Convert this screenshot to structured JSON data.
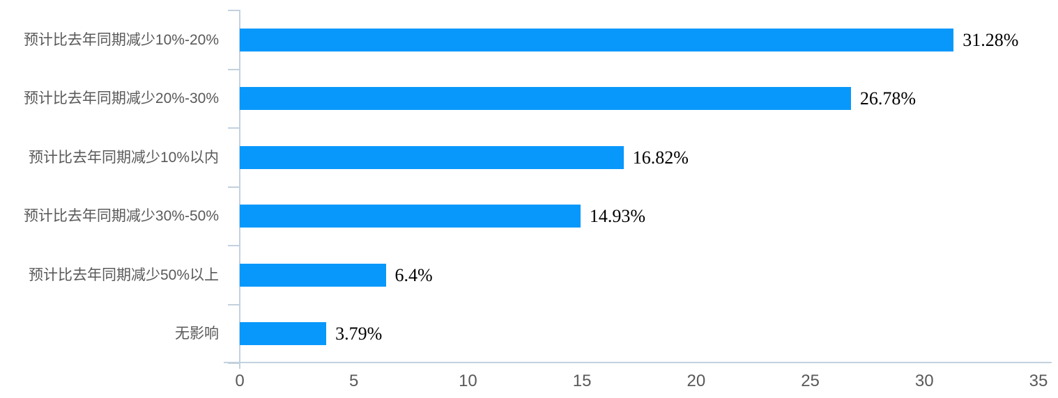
{
  "chart_data": {
    "type": "bar",
    "orientation": "horizontal",
    "title": "",
    "xlabel": "",
    "ylabel": "",
    "categories": [
      "预计比去年同期减少10%-20%",
      "预计比去年同期减少20%-30%",
      "预计比去年同期减少10%以内",
      "预计比去年同期减少30%-50%",
      "预计比去年同期减少50%以上",
      "无影响"
    ],
    "values": [
      31.28,
      26.78,
      16.82,
      14.93,
      6.4,
      3.79
    ],
    "value_labels": [
      "31.28%",
      "26.78%",
      "16.82%",
      "14.93%",
      "6.4%",
      "3.79%"
    ],
    "x_ticks": [
      "0",
      "5",
      "10",
      "15",
      "20",
      "25",
      "30",
      "35"
    ],
    "xlim": [
      0,
      35
    ],
    "grid": false,
    "legend": false,
    "colors": {
      "bar": "#0898fb",
      "axis_line": "#c3d1de",
      "category_label": "#595959",
      "tick_label": "#595959",
      "value_label": "#000000",
      "background": "#ffffff"
    }
  }
}
